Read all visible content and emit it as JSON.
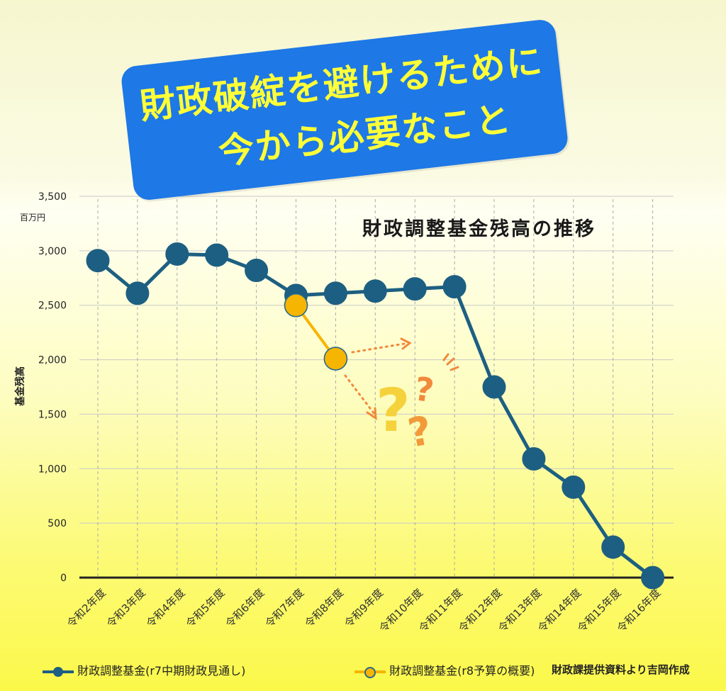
{
  "banner": {
    "line1": "財政破綻を避けるために",
    "line2": "今から必要なこと"
  },
  "chart_data": {
    "type": "line",
    "title": "財政調整基金残高の推移",
    "unit_label": "百万円",
    "ylabel": "基金残高",
    "ylim": [
      0,
      3500
    ],
    "yticks": [
      0,
      500,
      1000,
      1500,
      2000,
      2500,
      3000,
      3500
    ],
    "ytick_labels": [
      "0",
      "500",
      "1,000",
      "1,500",
      "2,000",
      "2,500",
      "3,000",
      "3,500"
    ],
    "categories": [
      "令和2年度",
      "令和3年度",
      "令和4年度",
      "令和5年度",
      "令和6年度",
      "令和7年度",
      "令和8年度",
      "令和9年度",
      "令和10年度",
      "令和11年度",
      "令和12年度",
      "令和13年度",
      "令和14年度",
      "令和15年度",
      "令和16年度"
    ],
    "grid": "horizontal solid, vertical dashed",
    "legend_position": "bottom",
    "series": [
      {
        "name": "財政調整基金(r7中期財政見通し)",
        "color": "#1d5f82",
        "values": [
          2910,
          2610,
          2970,
          2960,
          2820,
          2590,
          2610,
          2630,
          2650,
          2670,
          1750,
          1090,
          830,
          280,
          0
        ]
      },
      {
        "name": "財政調整基金(r8予算の概要)",
        "color": "#f6b500",
        "values": [
          null,
          null,
          null,
          null,
          null,
          2500,
          2010,
          null,
          null,
          null,
          null,
          null,
          null,
          null,
          null
        ]
      }
    ]
  },
  "legend": {
    "item1": "財政調整基金(r7中期財政見通し)",
    "item2": "財政調整基金(r8予算の概要)"
  },
  "source": "財政課提供資料より吉岡作成",
  "decoration": {
    "question_colors": [
      "#f5d23c",
      "#f08a3c",
      "#f29a3a"
    ]
  }
}
